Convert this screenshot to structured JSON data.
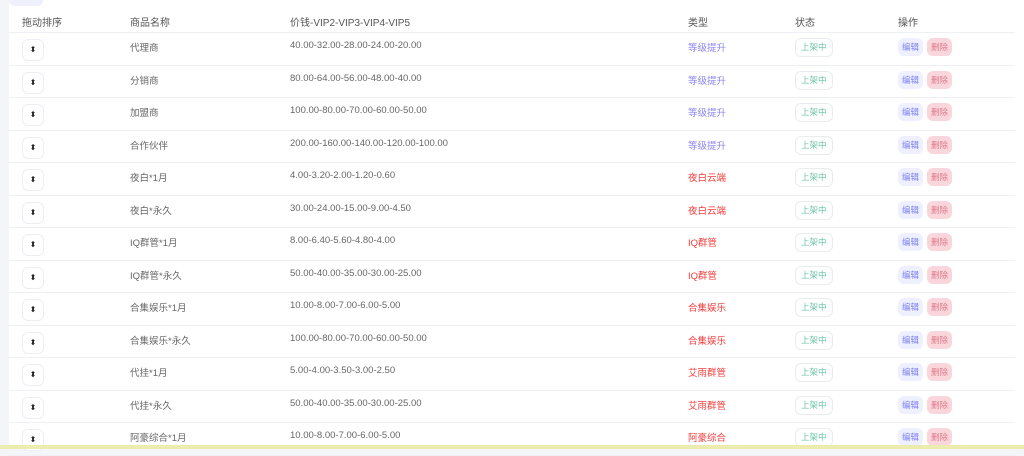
{
  "header": {
    "sort": "拖动排序",
    "name": "商品名称",
    "price": "价钱-VIP2-VIP3-VIP4-VIP5",
    "type": "类型",
    "status": "状态",
    "ops": "操作"
  },
  "labels": {
    "status": "上架中",
    "edit": "编辑",
    "delete": "删除",
    "sort_icon": "⬍"
  },
  "colors": {
    "type_upgrade": "#8a84f0",
    "type_red": "#f23a3a",
    "status": "#6cc3a6"
  },
  "rows": [
    {
      "name": "代理商",
      "price": "40.00-32.00-28.00-24.00-20.00",
      "type": "等级提升",
      "kind": "upgrade"
    },
    {
      "name": "分销商",
      "price": "80.00-64.00-56.00-48.00-40.00",
      "type": "等级提升",
      "kind": "upgrade"
    },
    {
      "name": "加盟商",
      "price": "100.00-80.00-70.00-60.00-50.00",
      "type": "等级提升",
      "kind": "upgrade"
    },
    {
      "name": "合作伙伴",
      "price": "200.00-160.00-140.00-120.00-100.00",
      "type": "等级提升",
      "kind": "upgrade"
    },
    {
      "name": "夜白*1月",
      "price": "4.00-3.20-2.00-1.20-0.60",
      "type": "夜白云端",
      "kind": "red"
    },
    {
      "name": "夜白*永久",
      "price": "30.00-24.00-15.00-9.00-4.50",
      "type": "夜白云端",
      "kind": "red"
    },
    {
      "name": "IQ群管*1月",
      "price": "8.00-6.40-5.60-4.80-4.00",
      "type": "IQ群管",
      "kind": "red"
    },
    {
      "name": "IQ群管*永久",
      "price": "50.00-40.00-35.00-30.00-25.00",
      "type": "IQ群管",
      "kind": "red"
    },
    {
      "name": "合集娱乐*1月",
      "price": "10.00-8.00-7.00-6.00-5.00",
      "type": "合集娱乐",
      "kind": "red"
    },
    {
      "name": "合集娱乐*永久",
      "price": "100.00-80.00-70.00-60.00-50.00",
      "type": "合集娱乐",
      "kind": "red"
    },
    {
      "name": "代挂*1月",
      "price": "5.00-4.00-3.50-3.00-2.50",
      "type": "艾雨群管",
      "kind": "red"
    },
    {
      "name": "代挂*永久",
      "price": "50.00-40.00-35.00-30.00-25.00",
      "type": "艾雨群管",
      "kind": "red"
    },
    {
      "name": "阿豪综合*1月",
      "price": "10.00-8.00-7.00-6.00-5.00",
      "type": "阿豪综合",
      "kind": "red"
    }
  ]
}
